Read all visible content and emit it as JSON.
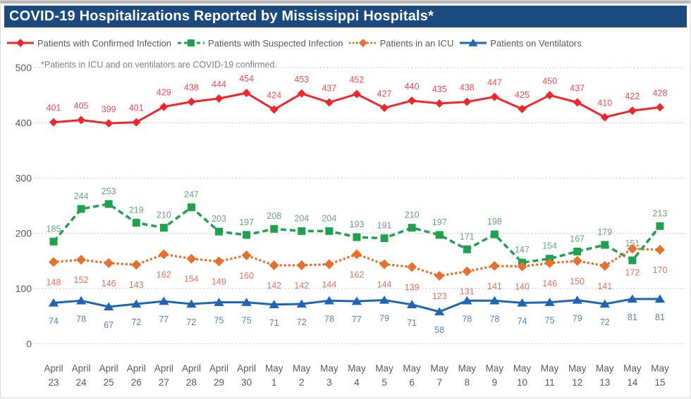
{
  "window": {
    "title": "COVID-19 Hospitalizations Reported by Mississippi Hospitals*"
  },
  "note": "*Patients in ICU and on ventilators are COVID-19 confirmed.",
  "colors": {
    "title_bar_bg": "#1a4a7e",
    "title_text": "#ffffff",
    "axis_text": "#595959",
    "gridline": "#d2d2d2",
    "note_text": "#7f7f7f",
    "confirmed": "#f0262b",
    "suspected": "#21a04e",
    "icu": "#e8702d",
    "ventilators": "#1f64b5",
    "confirmed_label": "#f24c50",
    "suspected_label": "#6ba578",
    "icu_label": "#e4745f",
    "ventilators_label": "#5580bb"
  },
  "chart_data": {
    "type": "line",
    "title": "COVID-19 Hospitalizations Reported by Mississippi Hospitals*",
    "subtitle": "*Patients in ICU and on ventilators are COVID-19 confirmed.",
    "categories": [
      [
        "April",
        "23"
      ],
      [
        "April",
        "24"
      ],
      [
        "April",
        "25"
      ],
      [
        "April",
        "26"
      ],
      [
        "April",
        "27"
      ],
      [
        "April",
        "28"
      ],
      [
        "April",
        "29"
      ],
      [
        "April",
        "30"
      ],
      [
        "May",
        "1"
      ],
      [
        "May",
        "2"
      ],
      [
        "May",
        "3"
      ],
      [
        "May",
        "4"
      ],
      [
        "May",
        "5"
      ],
      [
        "May",
        "6"
      ],
      [
        "May",
        "7"
      ],
      [
        "May",
        "8"
      ],
      [
        "May",
        "9"
      ],
      [
        "May",
        "10"
      ],
      [
        "May",
        "11"
      ],
      [
        "May",
        "12"
      ],
      [
        "May",
        "13"
      ],
      [
        "May",
        "14"
      ],
      [
        "May",
        "15"
      ]
    ],
    "series": [
      {
        "name": "Patients with Confirmed Infection",
        "color": "#f0262b",
        "line_style": "solid",
        "marker": "diamond",
        "values": [
          401,
          405,
          399,
          401,
          429,
          438,
          444,
          454,
          424,
          453,
          437,
          452,
          427,
          440,
          435,
          438,
          447,
          425,
          450,
          437,
          410,
          422,
          428
        ]
      },
      {
        "name": "Patients with Suspected Infection",
        "color": "#21a04e",
        "line_style": "dashed",
        "marker": "square",
        "values": [
          185,
          244,
          253,
          219,
          210,
          247,
          203,
          197,
          208,
          204,
          204,
          193,
          191,
          210,
          197,
          171,
          198,
          147,
          154,
          167,
          179,
          151,
          213
        ]
      },
      {
        "name": "Patients in an ICU",
        "color": "#e8702d",
        "line_style": "dotted",
        "marker": "diamond",
        "values": [
          148,
          152,
          146,
          143,
          162,
          154,
          149,
          160,
          142,
          142,
          144,
          162,
          144,
          139,
          123,
          131,
          141,
          140,
          146,
          150,
          141,
          172,
          170
        ]
      },
      {
        "name": "Patients on Ventilators",
        "color": "#1f64b5",
        "line_style": "solid",
        "marker": "triangle",
        "values": [
          74,
          78,
          67,
          72,
          77,
          72,
          75,
          75,
          71,
          72,
          78,
          77,
          79,
          71,
          58,
          78,
          78,
          74,
          75,
          79,
          72,
          81,
          81
        ]
      }
    ],
    "ylim": [
      0,
      500
    ],
    "yticks": [
      0,
      100,
      200,
      300,
      400,
      500
    ],
    "grid": "horizontal-dotted",
    "legend_position": "top"
  }
}
